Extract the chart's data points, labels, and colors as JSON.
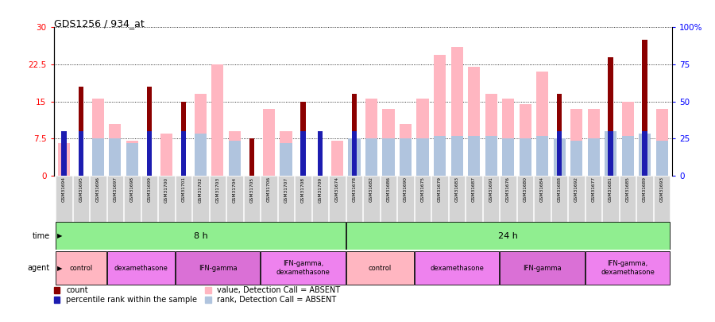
{
  "title": "GDS1256 / 934_at",
  "samples": [
    "GSM31694",
    "GSM31695",
    "GSM31696",
    "GSM31697",
    "GSM31698",
    "GSM31699",
    "GSM31700",
    "GSM31701",
    "GSM31702",
    "GSM31703",
    "GSM31704",
    "GSM31705",
    "GSM31706",
    "GSM31707",
    "GSM31708",
    "GSM31709",
    "GSM31674",
    "GSM31678",
    "GSM31682",
    "GSM31686",
    "GSM31690",
    "GSM31675",
    "GSM31679",
    "GSM31683",
    "GSM31687",
    "GSM31691",
    "GSM31676",
    "GSM31680",
    "GSM31684",
    "GSM31688",
    "GSM31692",
    "GSM31677",
    "GSM31681",
    "GSM31685",
    "GSM31689",
    "GSM31693"
  ],
  "count_values": [
    6.5,
    18.0,
    0,
    0,
    0,
    18.0,
    0,
    15.0,
    0,
    0,
    0,
    7.5,
    0,
    0,
    15.0,
    8.0,
    0,
    16.5,
    0,
    0,
    0,
    0,
    0,
    0,
    0,
    0,
    0,
    0,
    0,
    16.5,
    0,
    0,
    24.0,
    0,
    27.5,
    0
  ],
  "rank_values": [
    9.0,
    9.0,
    0,
    0,
    0,
    9.0,
    0,
    9.0,
    0,
    0,
    0,
    0,
    0,
    0,
    9.0,
    9.0,
    0,
    9.0,
    0,
    0,
    0,
    0,
    0,
    0,
    0,
    0,
    0,
    0,
    0,
    9.0,
    0,
    0,
    9.0,
    0,
    9.0,
    0
  ],
  "absent_value_values": [
    6.5,
    0,
    15.5,
    10.5,
    7.0,
    0,
    8.5,
    0,
    16.5,
    22.5,
    9.0,
    0,
    13.5,
    9.0,
    0,
    0,
    7.0,
    0,
    15.5,
    13.5,
    10.5,
    15.5,
    24.5,
    26.0,
    22.0,
    16.5,
    15.5,
    14.5,
    21.0,
    0,
    13.5,
    13.5,
    0,
    15.0,
    0,
    13.5
  ],
  "absent_rank_values": [
    0,
    0,
    7.5,
    7.5,
    6.5,
    0,
    0,
    0,
    8.5,
    0,
    7.0,
    0,
    0,
    6.5,
    0,
    0,
    0,
    7.5,
    7.5,
    7.5,
    7.5,
    7.5,
    8.0,
    8.0,
    8.0,
    8.0,
    7.5,
    7.5,
    8.0,
    7.5,
    7.0,
    7.5,
    9.0,
    8.0,
    8.5,
    7.0
  ],
  "ylim_left": [
    0,
    30
  ],
  "ylim_right": [
    0,
    100
  ],
  "yticks_left": [
    0,
    7.5,
    15,
    22.5,
    30
  ],
  "yticks_right": [
    0,
    25,
    50,
    75,
    100
  ],
  "time_groups": [
    {
      "label": "8 h",
      "start": 0,
      "end": 17
    },
    {
      "label": "24 h",
      "start": 17,
      "end": 36
    }
  ],
  "agent_groups_8h": [
    {
      "label": "control",
      "start": 0,
      "end": 3
    },
    {
      "label": "dexamethasone",
      "start": 3,
      "end": 7
    },
    {
      "label": "IFN-gamma",
      "start": 7,
      "end": 12
    },
    {
      "label": "IFN-gamma,\ndexamethasone",
      "start": 12,
      "end": 17
    }
  ],
  "agent_groups_24h": [
    {
      "label": "control",
      "start": 17,
      "end": 21
    },
    {
      "label": "dexamethasone",
      "start": 21,
      "end": 26
    },
    {
      "label": "IFN-gamma",
      "start": 26,
      "end": 31
    },
    {
      "label": "IFN-gamma,\ndexamethasone",
      "start": 31,
      "end": 36
    }
  ],
  "color_count": "#8B0000",
  "color_rank": "#1C1CB0",
  "color_absent_value": "#FFB6C1",
  "color_absent_rank": "#B0C4DE",
  "color_time_bg": "#90EE90",
  "color_tick_label_bg": "#D3D3D3",
  "agent_colors": [
    "#FFB6C1",
    "#EE82EE",
    "#DA70D6",
    "#EE82EE"
  ],
  "legend_items": [
    {
      "label": "count",
      "color": "#8B0000"
    },
    {
      "label": "percentile rank within the sample",
      "color": "#1C1CB0"
    },
    {
      "label": "value, Detection Call = ABSENT",
      "color": "#FFB6C1"
    },
    {
      "label": "rank, Detection Call = ABSENT",
      "color": "#B0C4DE"
    }
  ]
}
